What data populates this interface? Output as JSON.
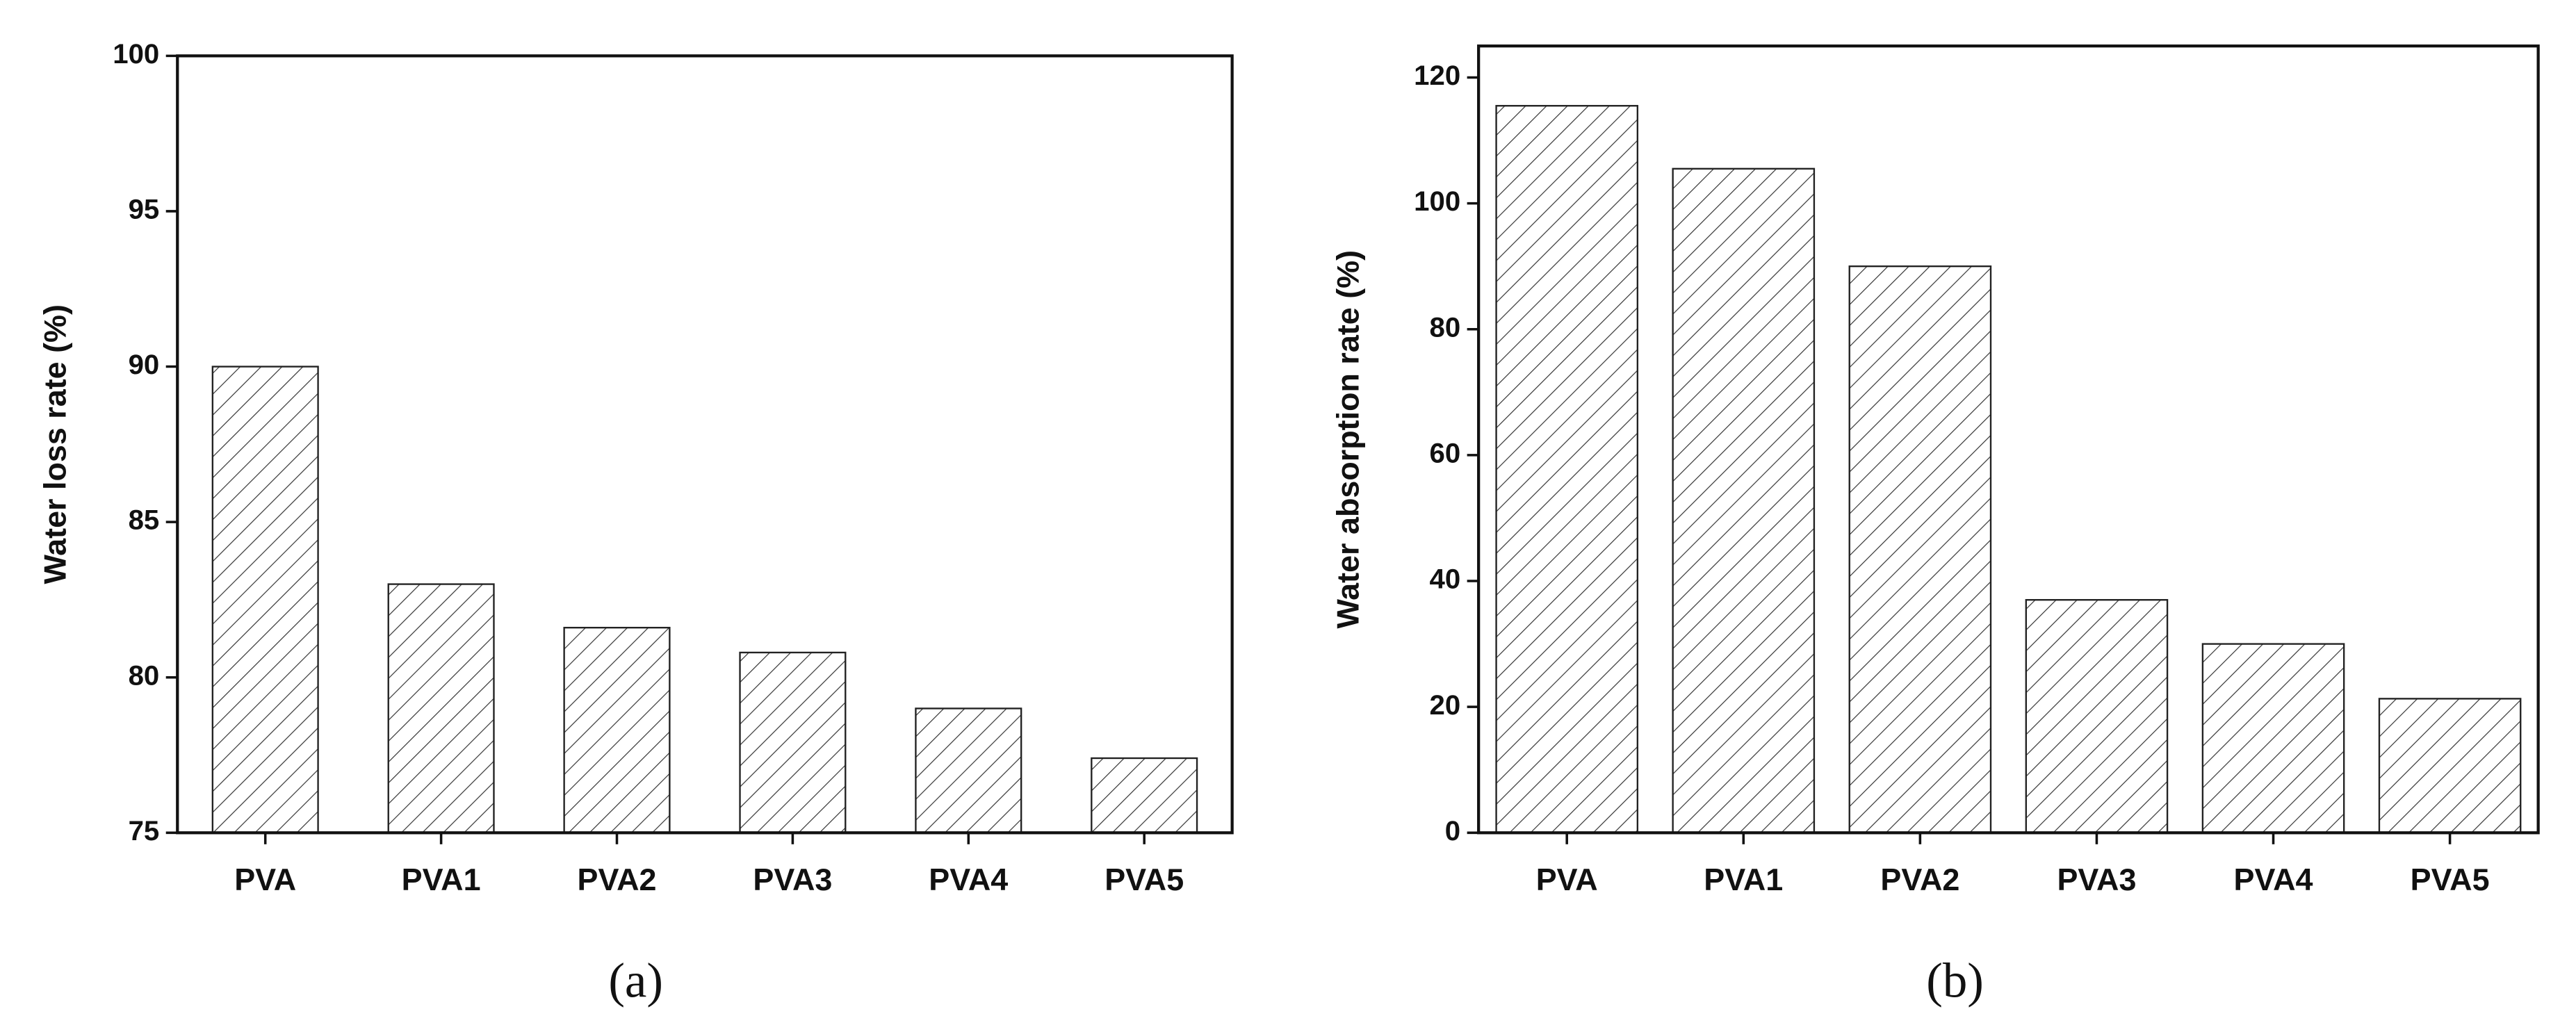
{
  "chart_data": [
    {
      "type": "bar",
      "caption": "(a)",
      "ylabel": "Water loss rate (%)",
      "categories": [
        "PVA",
        "PVA1",
        "PVA2",
        "PVA3",
        "PVA4",
        "PVA5"
      ],
      "values": [
        90,
        83,
        81.6,
        80.8,
        79,
        77.4
      ],
      "color": "#ffffff",
      "ylim": [
        75,
        100
      ],
      "yticks": [
        75,
        80,
        85,
        90,
        95,
        100
      ]
    },
    {
      "type": "bar",
      "caption": "(b)",
      "ylabel": "Water absorption rate (%)",
      "categories": [
        "PVA",
        "PVA1",
        "PVA2",
        "PVA3",
        "PVA4",
        "PVA5"
      ],
      "values": [
        115.5,
        105.5,
        90,
        37,
        30,
        21.3
      ],
      "color": "#ffffff",
      "ylim": [
        0,
        125
      ],
      "yticks": [
        0,
        20,
        40,
        60,
        80,
        100,
        120
      ]
    }
  ]
}
